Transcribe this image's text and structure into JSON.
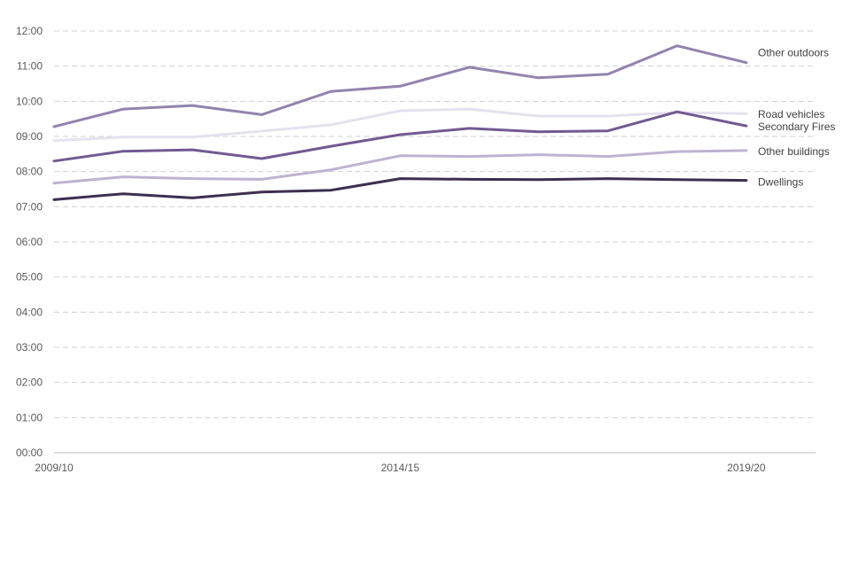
{
  "chart_data": {
    "type": "line",
    "title": "",
    "xlabel": "",
    "ylabel": "",
    "x": [
      0,
      1,
      2,
      3,
      4,
      5,
      6,
      7,
      8,
      9,
      10
    ],
    "x_tick_labels": [
      {
        "x": 0,
        "label": "2009/10"
      },
      {
        "x": 5,
        "label": "2014/15"
      },
      {
        "x": 10,
        "label": "2019/20"
      }
    ],
    "xlim": [
      0,
      11
    ],
    "ylim": [
      0,
      12
    ],
    "y_tick_values": [
      0,
      1,
      2,
      3,
      4,
      5,
      6,
      7,
      8,
      9,
      10,
      11,
      12
    ],
    "y_tick_labels": [
      "00:00",
      "01:00",
      "02:00",
      "03:00",
      "04:00",
      "05:00",
      "06:00",
      "07:00",
      "08:00",
      "09:00",
      "10:00",
      "11:00",
      "12:00"
    ],
    "grid": true,
    "legend": "direct labels at line ends",
    "series": [
      {
        "name": "Other outdoors",
        "color": "#9283ae",
        "values": [
          9.28,
          9.78,
          9.88,
          9.62,
          10.28,
          10.43,
          10.97,
          10.67,
          10.77,
          11.58,
          11.1
        ]
      },
      {
        "name": "Road vehicles",
        "color": "#e5e1ee",
        "values": [
          8.88,
          8.98,
          8.98,
          9.15,
          9.33,
          9.73,
          9.78,
          9.58,
          9.58,
          9.68,
          9.65
        ]
      },
      {
        "name": "Secondary Fires",
        "color": "#725a91",
        "values": [
          8.3,
          8.58,
          8.62,
          8.37,
          8.72,
          9.05,
          9.23,
          9.13,
          9.16,
          9.7,
          9.3
        ]
      },
      {
        "name": "Other buildings",
        "color": "#bdb3d1",
        "values": [
          7.67,
          7.85,
          7.8,
          7.78,
          8.05,
          8.45,
          8.43,
          8.48,
          8.43,
          8.57,
          8.6
        ]
      },
      {
        "name": "Dwellings",
        "color": "#3c2f50",
        "values": [
          7.2,
          7.37,
          7.25,
          7.42,
          7.47,
          7.8,
          7.78,
          7.77,
          7.8,
          7.77,
          7.75
        ]
      }
    ]
  }
}
